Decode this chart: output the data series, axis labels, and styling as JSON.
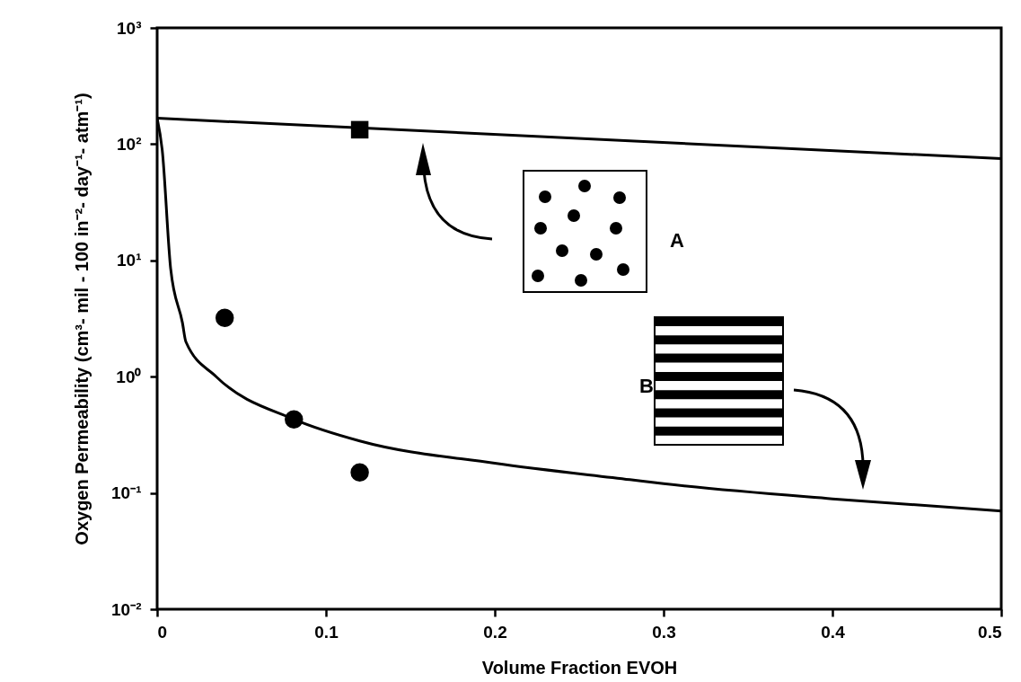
{
  "chart_data": {
    "type": "line",
    "xlabel": "Volume Fraction EVOH",
    "ylabel": "Oxygen Permeability (cm³- mil - 100 in⁻²- day⁻¹- atm⁻¹)",
    "log": "y",
    "grid": false,
    "xlim": [
      0,
      0.5
    ],
    "xticks": [
      0,
      0.1,
      0.2,
      0.3,
      0.4,
      0.5
    ],
    "ylim": [
      0.01,
      1000
    ],
    "yticks": [
      {
        "value": 0.01,
        "label": "10⁻²"
      },
      {
        "value": 0.1,
        "label": "10⁻¹"
      },
      {
        "value": 1,
        "label": "10⁰"
      },
      {
        "value": 10,
        "label": "10¹"
      },
      {
        "value": 100,
        "label": "10²"
      },
      {
        "value": 1000,
        "label": "10³"
      }
    ],
    "series": [
      {
        "marker": "none",
        "line_style": "solid",
        "color": "#000000",
        "x": [
          0,
          0.5
        ],
        "values": [
          167,
          75
        ]
      },
      {
        "marker": "none",
        "line_style": "solid",
        "color": "#000000",
        "x": [
          0,
          0.003,
          0.008,
          0.015,
          0.017,
          0.035,
          0.081,
          0.12,
          0.2,
          0.28,
          0.3,
          0.4,
          0.5
        ],
        "values": [
          167,
          89,
          8.5,
          2.9,
          2.0,
          1.0,
          0.43,
          0.28,
          0.18,
          0.13,
          0.12,
          0.089,
          0.07
        ]
      },
      {
        "type": "scatter",
        "marker": "square",
        "color": "#000000",
        "x": [
          0.12
        ],
        "values": [
          133
        ]
      },
      {
        "type": "scatter",
        "marker": "circle",
        "color": "#000000",
        "x": [
          0.04,
          0.081,
          0.12
        ],
        "values": [
          3.2,
          0.43,
          0.15
        ]
      }
    ],
    "annotations": [
      "A",
      "B"
    ]
  }
}
